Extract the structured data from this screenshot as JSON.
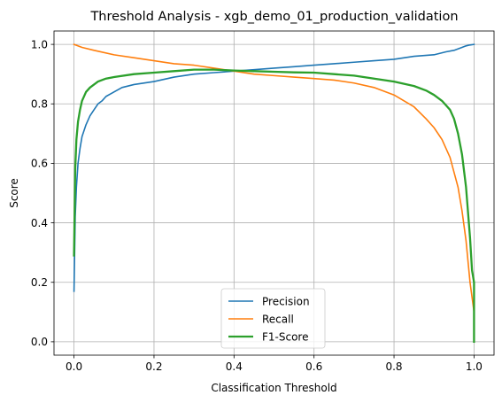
{
  "chart_data": {
    "type": "line",
    "title": "Threshold Analysis - xgb_demo_01_production_validation",
    "xlabel": "Classification Threshold",
    "ylabel": "Score",
    "xlim": [
      -0.05,
      1.05
    ],
    "ylim": [
      -0.045,
      1.045
    ],
    "grid": true,
    "legend_position": "bottom-center",
    "x_ticks": [
      0.0,
      0.2,
      0.4,
      0.6,
      0.8,
      1.0
    ],
    "x_tick_labels": [
      "0.0",
      "0.2",
      "0.4",
      "0.6",
      "0.8",
      "1.0"
    ],
    "y_ticks": [
      0.0,
      0.2,
      0.4,
      0.6,
      0.8,
      1.0
    ],
    "y_tick_labels": [
      "0.0",
      "0.2",
      "0.4",
      "0.6",
      "0.8",
      "1.0"
    ],
    "series": [
      {
        "name": "Precision",
        "color": "#1f77b4",
        "x": [
          0.0,
          0.003,
          0.006,
          0.01,
          0.015,
          0.02,
          0.03,
          0.04,
          0.05,
          0.06,
          0.07,
          0.08,
          0.1,
          0.12,
          0.15,
          0.2,
          0.25,
          0.3,
          0.35,
          0.4,
          0.45,
          0.5,
          0.55,
          0.6,
          0.65,
          0.7,
          0.75,
          0.8,
          0.85,
          0.9,
          0.93,
          0.95,
          0.97,
          0.98,
          0.99,
          1.0
        ],
        "y": [
          0.17,
          0.42,
          0.52,
          0.6,
          0.65,
          0.69,
          0.73,
          0.76,
          0.78,
          0.8,
          0.81,
          0.825,
          0.84,
          0.855,
          0.865,
          0.875,
          0.89,
          0.9,
          0.905,
          0.91,
          0.915,
          0.92,
          0.925,
          0.93,
          0.935,
          0.94,
          0.945,
          0.95,
          0.96,
          0.965,
          0.975,
          0.98,
          0.99,
          0.995,
          0.998,
          1.0
        ]
      },
      {
        "name": "Recall",
        "color": "#ff7f0e",
        "x": [
          0.0,
          0.02,
          0.05,
          0.1,
          0.15,
          0.2,
          0.25,
          0.3,
          0.35,
          0.4,
          0.45,
          0.5,
          0.55,
          0.6,
          0.65,
          0.7,
          0.75,
          0.8,
          0.85,
          0.88,
          0.9,
          0.92,
          0.94,
          0.96,
          0.97,
          0.98,
          0.99,
          1.0
        ],
        "y": [
          1.0,
          0.99,
          0.98,
          0.965,
          0.955,
          0.945,
          0.935,
          0.93,
          0.92,
          0.91,
          0.9,
          0.895,
          0.89,
          0.885,
          0.88,
          0.87,
          0.855,
          0.83,
          0.79,
          0.75,
          0.72,
          0.68,
          0.62,
          0.52,
          0.44,
          0.34,
          0.2,
          0.1
        ]
      },
      {
        "name": "F1-Score",
        "color": "#2ca02c",
        "x": [
          0.0,
          0.003,
          0.006,
          0.01,
          0.015,
          0.02,
          0.03,
          0.04,
          0.05,
          0.06,
          0.08,
          0.1,
          0.15,
          0.2,
          0.25,
          0.3,
          0.35,
          0.4,
          0.45,
          0.5,
          0.55,
          0.6,
          0.65,
          0.7,
          0.75,
          0.8,
          0.85,
          0.88,
          0.9,
          0.92,
          0.94,
          0.95,
          0.96,
          0.97,
          0.98,
          0.99,
          0.995,
          1.0,
          1.0
        ],
        "y": [
          0.29,
          0.58,
          0.68,
          0.74,
          0.78,
          0.81,
          0.84,
          0.855,
          0.865,
          0.875,
          0.885,
          0.89,
          0.9,
          0.905,
          0.91,
          0.915,
          0.915,
          0.912,
          0.91,
          0.908,
          0.906,
          0.905,
          0.9,
          0.895,
          0.885,
          0.875,
          0.86,
          0.845,
          0.83,
          0.81,
          0.78,
          0.75,
          0.7,
          0.63,
          0.52,
          0.35,
          0.24,
          0.2,
          0.0
        ]
      }
    ]
  }
}
